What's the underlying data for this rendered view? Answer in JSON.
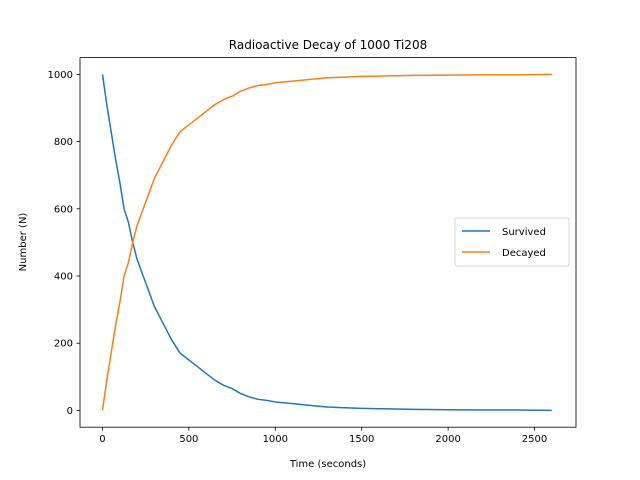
{
  "chart_data": {
    "type": "line",
    "title": "Radioactive Decay of 1000 Ti208",
    "xlabel": "Time (seconds)",
    "ylabel": "Number (N)",
    "xlim": [
      -130,
      2740
    ],
    "ylim": [
      -50,
      1050
    ],
    "x_ticks": [
      0,
      500,
      1000,
      1500,
      2000,
      2500
    ],
    "y_ticks": [
      0,
      200,
      400,
      600,
      800,
      1000
    ],
    "grid": false,
    "legend_position": "center-right",
    "series": [
      {
        "name": "Survived",
        "color": "#1f77b4",
        "x": [
          0,
          25,
          50,
          75,
          100,
          125,
          150,
          175,
          200,
          250,
          300,
          350,
          400,
          450,
          500,
          550,
          600,
          650,
          700,
          750,
          800,
          850,
          900,
          950,
          1000,
          1100,
          1200,
          1300,
          1400,
          1500,
          1600,
          1700,
          1800,
          2000,
          2200,
          2400,
          2600
        ],
        "y": [
          1000,
          910,
          830,
          750,
          680,
          600,
          560,
          500,
          450,
          380,
          310,
          260,
          210,
          170,
          150,
          130,
          110,
          90,
          75,
          65,
          50,
          40,
          33,
          30,
          25,
          20,
          15,
          10,
          8,
          6,
          5,
          4,
          3,
          2,
          1,
          1,
          0
        ]
      },
      {
        "name": "Decayed",
        "color": "#ff7f0e",
        "x": [
          0,
          25,
          50,
          75,
          100,
          125,
          150,
          175,
          200,
          250,
          300,
          350,
          400,
          450,
          500,
          550,
          600,
          650,
          700,
          750,
          800,
          850,
          900,
          950,
          1000,
          1100,
          1200,
          1300,
          1400,
          1500,
          1600,
          1700,
          1800,
          2000,
          2200,
          2400,
          2600
        ],
        "y": [
          0,
          90,
          170,
          250,
          320,
          400,
          440,
          500,
          550,
          620,
          690,
          740,
          790,
          830,
          850,
          870,
          890,
          910,
          925,
          935,
          950,
          960,
          967,
          970,
          975,
          980,
          985,
          990,
          992,
          994,
          995,
          996,
          997,
          998,
          999,
          999,
          1000
        ]
      }
    ]
  }
}
